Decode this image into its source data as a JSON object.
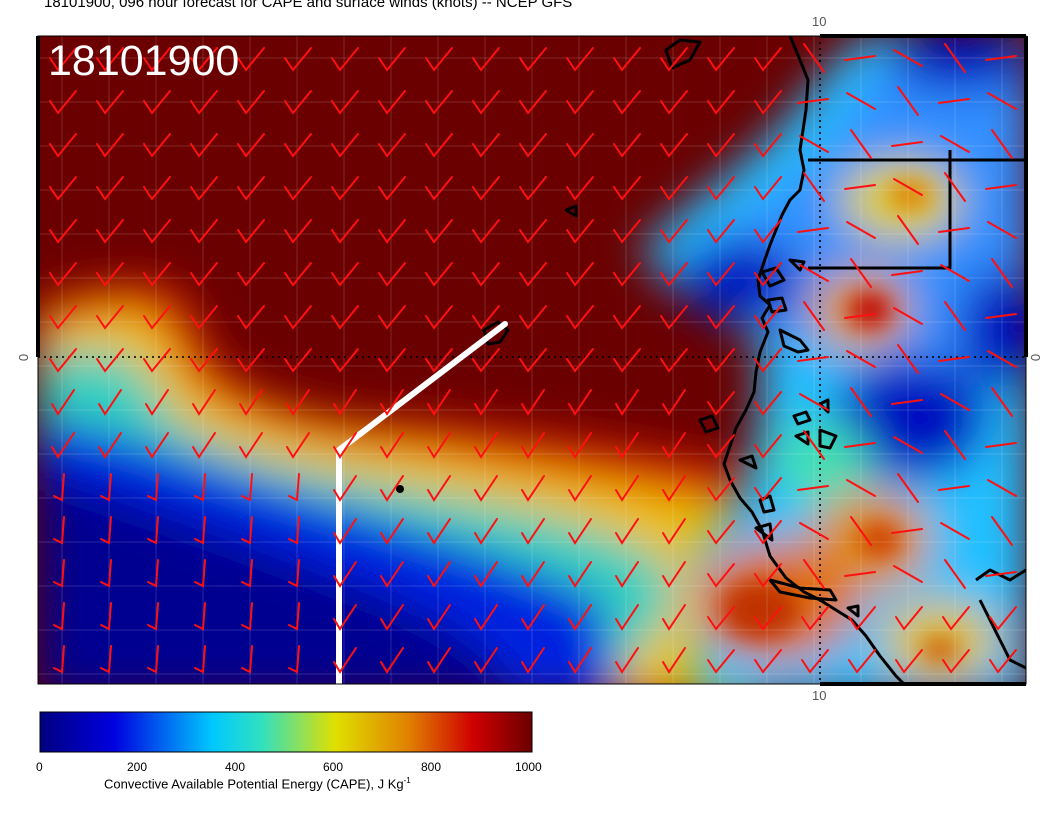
{
  "header": {
    "title": "18101900, 096 hour forecast for CAPE and surface winds (knots) -- NCEP GFS",
    "stamp": "18101900"
  },
  "axes": {
    "top_lon_label": "10",
    "bottom_lon_label": "10",
    "left_lat_label": "0",
    "right_lat_label": "0"
  },
  "colorbar": {
    "ticks": [
      "0",
      "200",
      "400",
      "600",
      "800",
      "1000"
    ],
    "title": "Convective Available Potential Energy (CAPE), J Kg",
    "title_sup": "-1",
    "colors": [
      "#00007f",
      "#0000ff",
      "#00ffff",
      "#ffff00",
      "#ff0000",
      "#7f0000"
    ]
  },
  "map": {
    "background_color": "#6b0000",
    "wind_barb_color": "#ff0000",
    "coastline_color": "#000000",
    "track_color": "#ffffff",
    "field": "CAPE",
    "wind_units": "knots"
  }
}
